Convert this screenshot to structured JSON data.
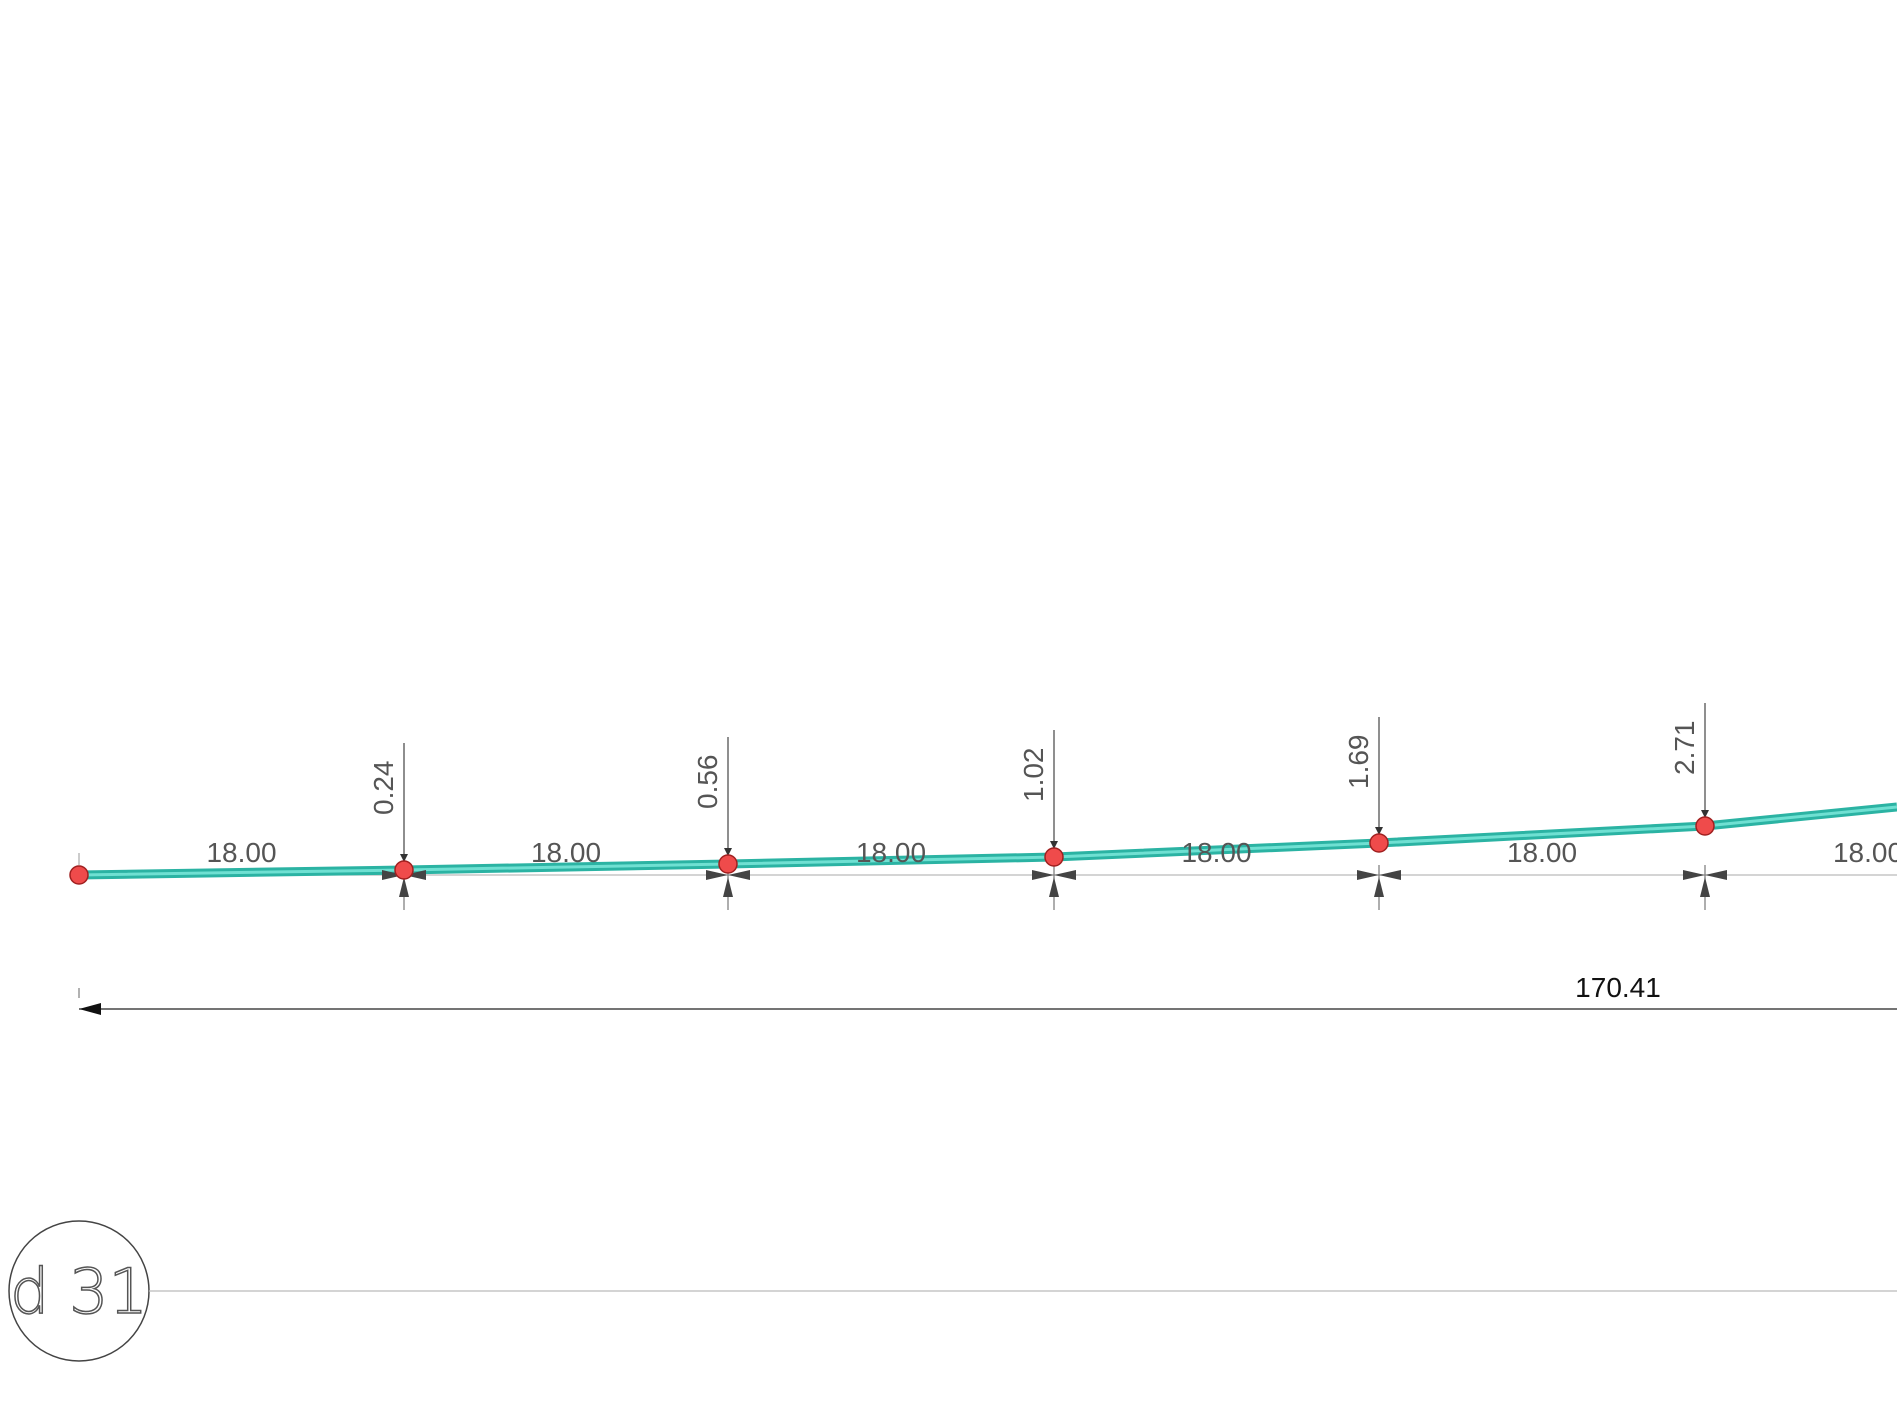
{
  "spans": [
    "18.00",
    "18.00",
    "18.00",
    "18.00",
    "18.00",
    "18.00"
  ],
  "offsets": [
    "0.24",
    "0.56",
    "1.02",
    "1.69",
    "2.71"
  ],
  "total": "170.41",
  "grid_label": "d 31"
}
